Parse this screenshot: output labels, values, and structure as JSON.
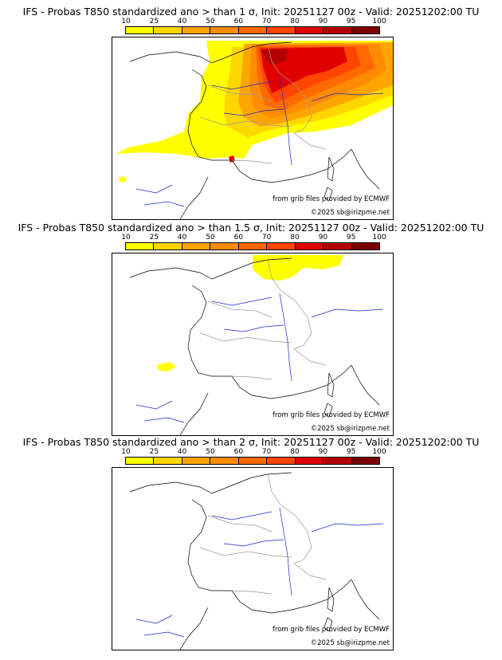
{
  "legend": {
    "ticks": [
      "10",
      "25",
      "40",
      "50",
      "60",
      "70",
      "80",
      "90",
      "95",
      "100"
    ],
    "colors": [
      "#ffff00",
      "#ffd700",
      "#ffa500",
      "#ff8c00",
      "#ff6a00",
      "#ff4500",
      "#e00000",
      "#b40000",
      "#7a0000"
    ]
  },
  "colors": {
    "coast": "#000000",
    "rivers": "#2222cc",
    "borders": "#999999"
  },
  "panels": [
    {
      "title": "IFS - Probas T850  standardized ano > than 1 σ, Init: 20251127 00z - Valid: 20251202:00 TU",
      "source_credit": "from grib files provided by ECMWF",
      "copyright": "©2025 sb@irizpme.net"
    },
    {
      "title": "IFS - Probas T850  standardized ano > than 1.5 σ, Init: 20251127 00z - Valid: 20251202:00 TU",
      "source_credit": "from grib files provided by ECMWF",
      "copyright": "©2025 sb@irizpme.net"
    },
    {
      "title": "IFS - Probas T850  standardized ano > than 2 σ, Init: 20251127 00z - Valid: 20251202:00 TU",
      "source_credit": "from grib files provided by ECMWF",
      "copyright": "©2025 sb@irizpme.net"
    }
  ]
}
